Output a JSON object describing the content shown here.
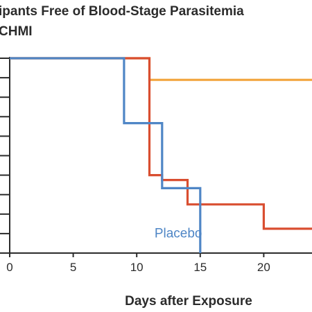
{
  "chart_data": {
    "type": "line",
    "step": true,
    "title_lines": [
      "ipants Free of Blood-Stage Parasitemia",
      "CHMI"
    ],
    "xlabel": "Days after Exposure",
    "xlim": [
      0,
      23.8
    ],
    "ylim": [
      0,
      100
    ],
    "x_ticks": [
      0,
      5,
      10,
      15,
      20
    ],
    "y_tick_count": 11,
    "grid": false,
    "series": [
      {
        "name": "",
        "color": "#f2a43a",
        "points": [
          [
            0,
            100
          ],
          [
            11,
            100
          ],
          [
            11,
            88.9
          ],
          [
            23.8,
            88.9
          ]
        ]
      },
      {
        "name": "",
        "color": "#d94e30",
        "points": [
          [
            0,
            100
          ],
          [
            11,
            100
          ],
          [
            11,
            40
          ],
          [
            12,
            40
          ],
          [
            12,
            37.5
          ],
          [
            14,
            37.5
          ],
          [
            14,
            25
          ],
          [
            20,
            25
          ],
          [
            20,
            12.5
          ],
          [
            23.8,
            12.5
          ]
        ]
      },
      {
        "name": "Placebo",
        "color": "#4f86c6",
        "points": [
          [
            0,
            100
          ],
          [
            9,
            100
          ],
          [
            9,
            66.7
          ],
          [
            12,
            66.7
          ],
          [
            12,
            33.3
          ],
          [
            15,
            33.3
          ],
          [
            15,
            0
          ]
        ]
      }
    ],
    "annotations": [
      {
        "text": "Placebo",
        "x": 11.4,
        "y": 8,
        "color": "#4f86c6"
      }
    ]
  }
}
